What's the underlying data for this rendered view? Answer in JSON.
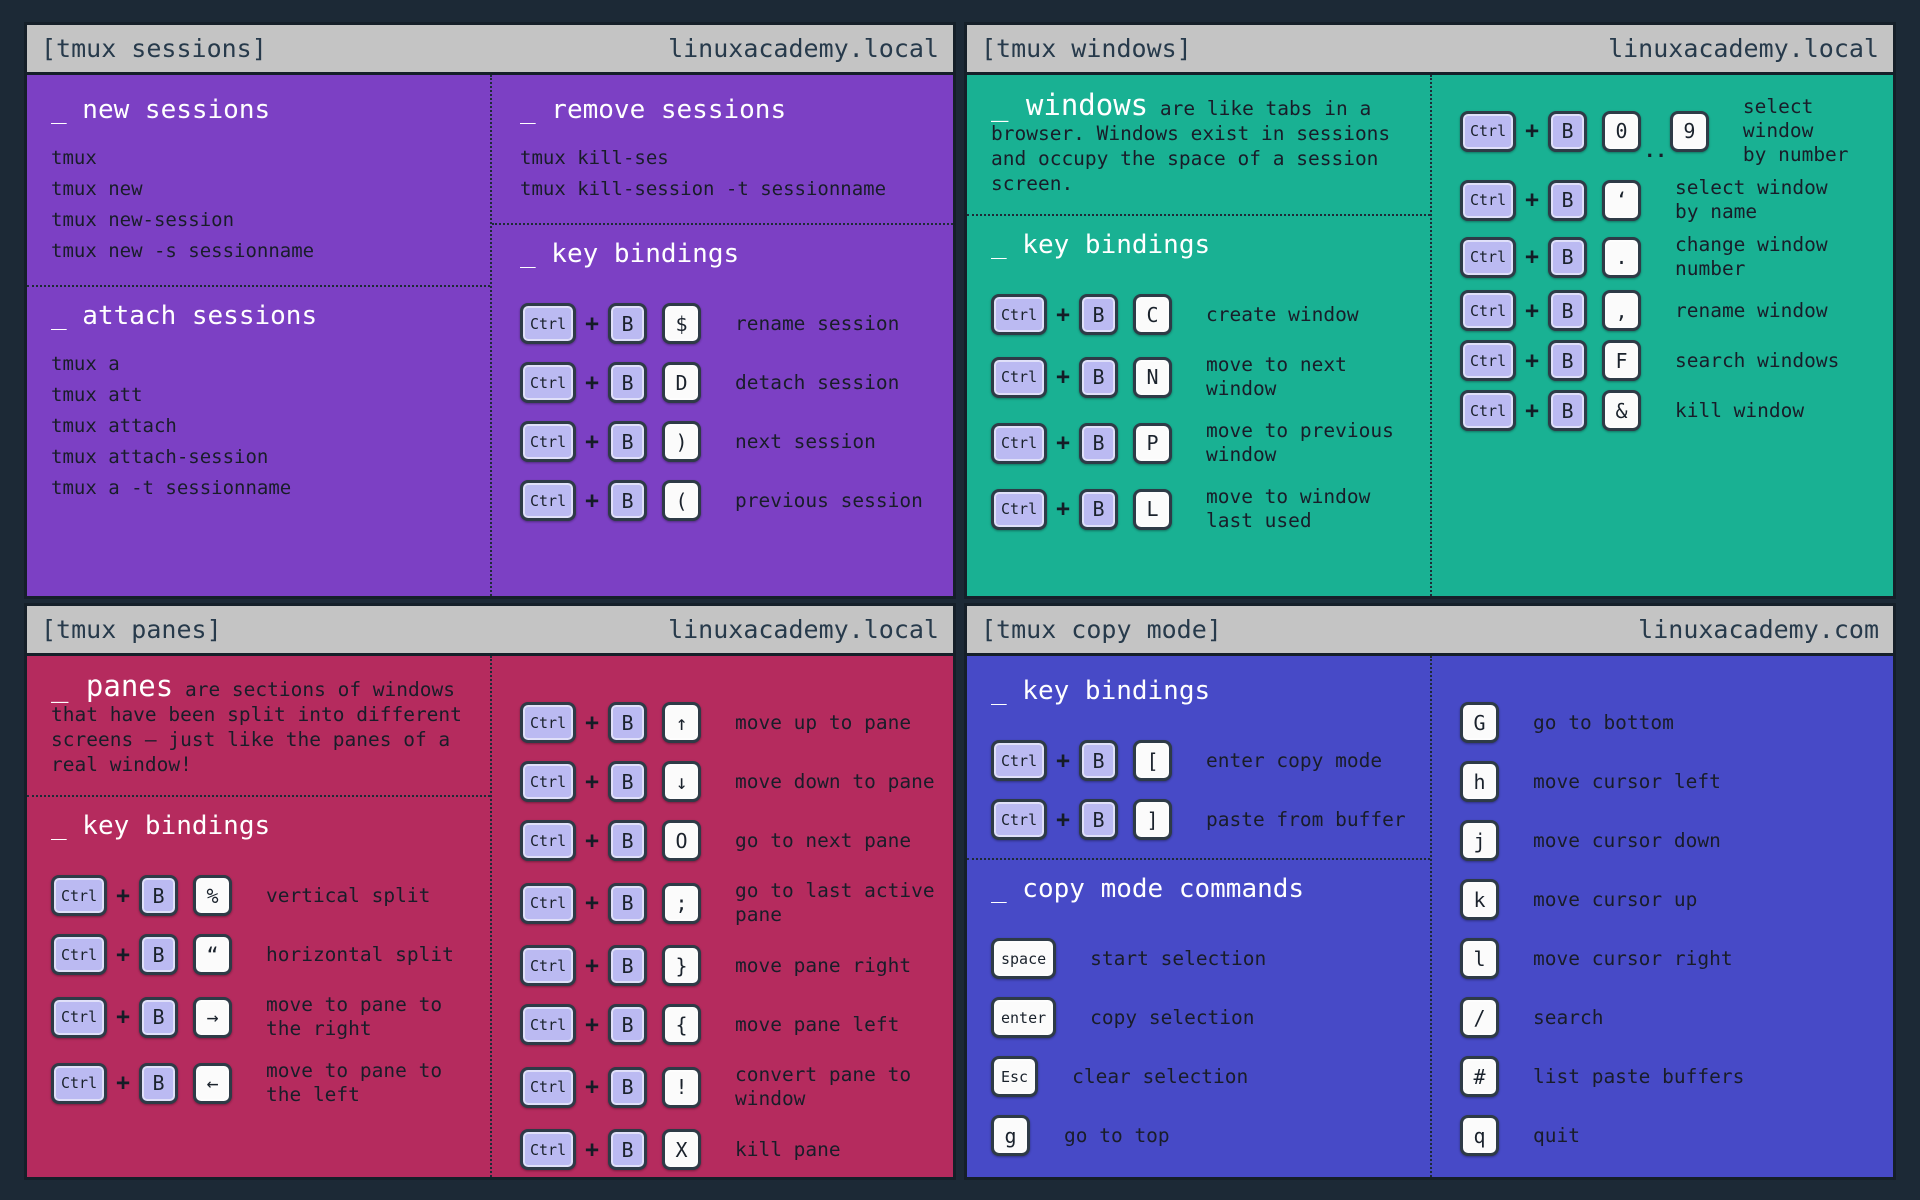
{
  "page": {
    "background": "#1c2936",
    "titlebar_bg": "#c4c4c4",
    "titlebar_text_color": "#273a4b",
    "mod_key_color": "#bbbaf2",
    "char_key_color": "#fbfbfb",
    "heading_color": "#ffffff"
  },
  "glyphs": {
    "plus": "+"
  },
  "panels": [
    {
      "id": "sessions",
      "title": "[tmux sessions]",
      "domain": "linuxacademy.local",
      "accent": "#7c40c4",
      "columns": [
        {
          "sections": [
            {
              "type": "block",
              "heading": "_ new sessions",
              "commands": [
                "tmux",
                "tmux new",
                "tmux new-session",
                "tmux new -s sessionname"
              ]
            },
            {
              "type": "divider"
            },
            {
              "type": "block",
              "heading": "_ attach sessions",
              "commands": [
                "tmux a",
                "tmux att",
                "tmux attach",
                "tmux attach-session",
                "tmux a -t sessionname"
              ]
            }
          ]
        },
        {
          "sections": [
            {
              "type": "block",
              "heading": "_ remove sessions",
              "commands": [
                "tmux kill-ses",
                "tmux kill-session -t sessionname"
              ]
            },
            {
              "type": "divider"
            },
            {
              "type": "bindings",
              "heading": "_ key bindings",
              "rows": [
                {
                  "mods": [
                    "Ctrl",
                    "B"
                  ],
                  "keys": [
                    "$"
                  ],
                  "label": "rename session"
                },
                {
                  "mods": [
                    "Ctrl",
                    "B"
                  ],
                  "keys": [
                    "D"
                  ],
                  "label": "detach session"
                },
                {
                  "mods": [
                    "Ctrl",
                    "B"
                  ],
                  "keys": [
                    ")"
                  ],
                  "label": "next session"
                },
                {
                  "mods": [
                    "Ctrl",
                    "B"
                  ],
                  "keys": [
                    "("
                  ],
                  "label": "previous session"
                }
              ]
            }
          ]
        }
      ]
    },
    {
      "id": "windows",
      "title": "[tmux windows]",
      "domain": "linuxacademy.local",
      "accent": "#19b193",
      "columns": [
        {
          "sections": [
            {
              "type": "desc",
              "lead": "_ windows",
              "rest": "are like tabs in a browser. Windows exist in sessions and occupy the space of a session screen."
            },
            {
              "type": "divider"
            },
            {
              "type": "bindings",
              "heading": "_ key bindings",
              "rows": [
                {
                  "mods": [
                    "Ctrl",
                    "B"
                  ],
                  "keys": [
                    "C"
                  ],
                  "label": "create window"
                },
                {
                  "mods": [
                    "Ctrl",
                    "B"
                  ],
                  "keys": [
                    "N"
                  ],
                  "label": "move to next\nwindow"
                },
                {
                  "mods": [
                    "Ctrl",
                    "B"
                  ],
                  "keys": [
                    "P"
                  ],
                  "label": "move to previous\nwindow"
                },
                {
                  "mods": [
                    "Ctrl",
                    "B"
                  ],
                  "keys": [
                    "L"
                  ],
                  "label": "move to window\nlast used"
                }
              ]
            }
          ]
        },
        {
          "sections": [
            {
              "type": "bindings",
              "heading": null,
              "compact": true,
              "rows": [
                {
                  "mods": [
                    "Ctrl",
                    "B"
                  ],
                  "keys": [
                    "0",
                    "9"
                  ],
                  "sep": "..",
                  "label": "select window\nby number"
                },
                {
                  "mods": [
                    "Ctrl",
                    "B"
                  ],
                  "keys": [
                    "‘"
                  ],
                  "label": "select window\nby name"
                },
                {
                  "mods": [
                    "Ctrl",
                    "B"
                  ],
                  "keys": [
                    "."
                  ],
                  "label": "change window\nnumber"
                },
                {
                  "mods": [
                    "Ctrl",
                    "B"
                  ],
                  "keys": [
                    ","
                  ],
                  "label": "rename window"
                },
                {
                  "mods": [
                    "Ctrl",
                    "B"
                  ],
                  "keys": [
                    "F"
                  ],
                  "label": "search windows"
                },
                {
                  "mods": [
                    "Ctrl",
                    "B"
                  ],
                  "keys": [
                    "&"
                  ],
                  "label": "kill window"
                }
              ]
            }
          ]
        }
      ]
    },
    {
      "id": "panes",
      "title": "[tmux panes]",
      "domain": "linuxacademy.local",
      "accent": "#b52b5e",
      "columns": [
        {
          "sections": [
            {
              "type": "desc",
              "lead": "_ panes",
              "rest": "are sections of windows that have been split into different screens — just like the panes of a real window!"
            },
            {
              "type": "divider"
            },
            {
              "type": "bindings",
              "heading": "_ key bindings",
              "rows": [
                {
                  "mods": [
                    "Ctrl",
                    "B"
                  ],
                  "keys": [
                    "%"
                  ],
                  "label": "vertical split"
                },
                {
                  "mods": [
                    "Ctrl",
                    "B"
                  ],
                  "keys": [
                    "“"
                  ],
                  "label": "horizontal split"
                },
                {
                  "mods": [
                    "Ctrl",
                    "B"
                  ],
                  "keys": [
                    "→"
                  ],
                  "label": "move to pane to\nthe right"
                },
                {
                  "mods": [
                    "Ctrl",
                    "B"
                  ],
                  "keys": [
                    "←"
                  ],
                  "label": "move to pane to\nthe left"
                }
              ]
            }
          ]
        },
        {
          "sections": [
            {
              "type": "bindings",
              "heading": null,
              "rows": [
                {
                  "mods": [
                    "Ctrl",
                    "B"
                  ],
                  "keys": [
                    "↑"
                  ],
                  "label": "move up to pane"
                },
                {
                  "mods": [
                    "Ctrl",
                    "B"
                  ],
                  "keys": [
                    "↓"
                  ],
                  "label": "move down to pane"
                },
                {
                  "mods": [
                    "Ctrl",
                    "B"
                  ],
                  "keys": [
                    "O"
                  ],
                  "label": "go to next pane"
                },
                {
                  "mods": [
                    "Ctrl",
                    "B"
                  ],
                  "keys": [
                    ";"
                  ],
                  "label": "go to last active\npane"
                },
                {
                  "mods": [
                    "Ctrl",
                    "B"
                  ],
                  "keys": [
                    "}"
                  ],
                  "label": "move pane right"
                },
                {
                  "mods": [
                    "Ctrl",
                    "B"
                  ],
                  "keys": [
                    "{"
                  ],
                  "label": "move pane left"
                },
                {
                  "mods": [
                    "Ctrl",
                    "B"
                  ],
                  "keys": [
                    "!"
                  ],
                  "label": "convert pane to\nwindow"
                },
                {
                  "mods": [
                    "Ctrl",
                    "B"
                  ],
                  "keys": [
                    "X"
                  ],
                  "label": "kill pane"
                }
              ]
            }
          ]
        }
      ]
    },
    {
      "id": "copy-mode",
      "title": "[tmux copy mode]",
      "domain": "linuxacademy.com",
      "accent": "#474ac7",
      "columns": [
        {
          "sections": [
            {
              "type": "bindings",
              "heading": "_ key bindings",
              "rows": [
                {
                  "mods": [
                    "Ctrl",
                    "B"
                  ],
                  "keys": [
                    "["
                  ],
                  "label": "enter copy mode"
                },
                {
                  "mods": [
                    "Ctrl",
                    "B"
                  ],
                  "keys": [
                    "]"
                  ],
                  "label": "paste from buffer"
                }
              ]
            },
            {
              "type": "divider"
            },
            {
              "type": "bindings",
              "heading": "_ copy mode commands",
              "rows": [
                {
                  "mods": [],
                  "keys": [
                    "space"
                  ],
                  "label": "start selection"
                },
                {
                  "mods": [],
                  "keys": [
                    "enter"
                  ],
                  "label": "copy selection"
                },
                {
                  "mods": [],
                  "keys": [
                    "Esc"
                  ],
                  "label": "clear selection"
                },
                {
                  "mods": [],
                  "keys": [
                    "g"
                  ],
                  "label": "go to top"
                }
              ]
            }
          ]
        },
        {
          "sections": [
            {
              "type": "bindings",
              "heading": null,
              "rows": [
                {
                  "mods": [],
                  "keys": [
                    "G"
                  ],
                  "label": "go to bottom"
                },
                {
                  "mods": [],
                  "keys": [
                    "h"
                  ],
                  "label": "move cursor left"
                },
                {
                  "mods": [],
                  "keys": [
                    "j"
                  ],
                  "label": "move cursor down"
                },
                {
                  "mods": [],
                  "keys": [
                    "k"
                  ],
                  "label": "move cursor up"
                },
                {
                  "mods": [],
                  "keys": [
                    "l"
                  ],
                  "label": "move cursor right"
                },
                {
                  "mods": [],
                  "keys": [
                    "/"
                  ],
                  "label": "search"
                },
                {
                  "mods": [],
                  "keys": [
                    "#"
                  ],
                  "label": "list paste buffers"
                },
                {
                  "mods": [],
                  "keys": [
                    "q"
                  ],
                  "label": "quit"
                }
              ]
            }
          ]
        }
      ]
    }
  ]
}
